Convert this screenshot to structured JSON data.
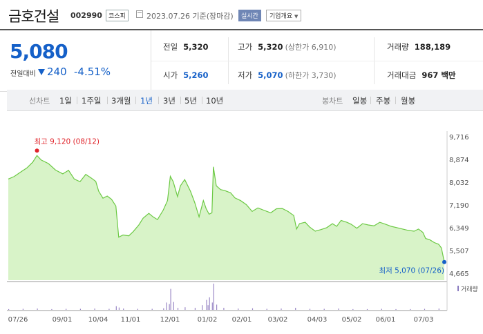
{
  "header": {
    "name": "금호건설",
    "code": "002990",
    "market": "코스피",
    "date_text": "2023.07.26 기준(장마감)",
    "realtime_label": "실시간",
    "overview_label": "기업개요",
    "overview_caret": "▼"
  },
  "quote": {
    "price": "5,080",
    "change_label": "전일대비",
    "change": "240",
    "change_pct": "-4.51%",
    "prev_label": "전일",
    "prev": "5,320",
    "open_label": "시가",
    "open": "5,260",
    "high_label": "고가",
    "high": "5,320",
    "high_limit": "(상한가 6,910)",
    "low_label": "저가",
    "low": "5,070",
    "low_limit": "(하한가 3,730)",
    "volume_label": "거래량",
    "volume": "188,189",
    "amount_label": "거래대금",
    "amount": "967 백만",
    "colors": {
      "down": "#1560c8",
      "up": "#e0242b"
    }
  },
  "tabs": {
    "line_label": "선차트",
    "line_items": [
      "1일",
      "1주일",
      "3개월",
      "1년",
      "3년",
      "5년",
      "10년"
    ],
    "active": "1년",
    "candle_label": "봉차트",
    "candle_items": [
      "일봉",
      "주봉",
      "월봉"
    ]
  },
  "chart_data": {
    "type": "area",
    "y_ticks": [
      "9,716",
      "8,874",
      "8,032",
      "7,190",
      "6,349",
      "5,507",
      "4,665"
    ],
    "ylim": [
      4665,
      9716
    ],
    "x_labels": [
      "07/26",
      "09/01",
      "10/04",
      "11/01",
      "12/01",
      "01/02",
      "02/01",
      "03/02",
      "04/03",
      "05/02",
      "06/01",
      "07/03"
    ],
    "max_label": "최고 9,120 (08/12)",
    "min_label": "최저 5,070 (07/26)",
    "volume_label": "거래량",
    "colors": {
      "line": "#6cc944",
      "fill": "#d8f3c8",
      "max": "#e0242b",
      "min": "#1560c8",
      "volume": "#9b88c6"
    },
    "price": [
      [
        0,
        8150
      ],
      [
        4,
        8240
      ],
      [
        9,
        8420
      ],
      [
        13,
        8560
      ],
      [
        17,
        8770
      ],
      [
        20,
        9020
      ],
      [
        23,
        8850
      ],
      [
        28,
        8720
      ],
      [
        33,
        8480
      ],
      [
        38,
        8340
      ],
      [
        42,
        8470
      ],
      [
        46,
        8150
      ],
      [
        50,
        8050
      ],
      [
        54,
        8320
      ],
      [
        58,
        8180
      ],
      [
        61,
        8060
      ],
      [
        63,
        7700
      ],
      [
        66,
        7440
      ],
      [
        69,
        7520
      ],
      [
        72,
        7400
      ],
      [
        75,
        7150
      ],
      [
        77,
        6000
      ],
      [
        80,
        6080
      ],
      [
        84,
        6050
      ],
      [
        87,
        6200
      ],
      [
        91,
        6450
      ],
      [
        94,
        6700
      ],
      [
        98,
        6880
      ],
      [
        101,
        6750
      ],
      [
        104,
        6650
      ],
      [
        108,
        7000
      ],
      [
        111,
        7350
      ],
      [
        113,
        8250
      ],
      [
        115,
        8050
      ],
      [
        118,
        7500
      ],
      [
        120,
        7900
      ],
      [
        123,
        8130
      ],
      [
        127,
        7700
      ],
      [
        130,
        7280
      ],
      [
        133,
        6750
      ],
      [
        136,
        7350
      ],
      [
        138,
        7050
      ],
      [
        140,
        6850
      ],
      [
        142,
        6900
      ],
      [
        143,
        8600
      ],
      [
        145,
        7900
      ],
      [
        148,
        7760
      ],
      [
        151,
        7720
      ],
      [
        155,
        7640
      ],
      [
        158,
        7450
      ],
      [
        162,
        7350
      ],
      [
        166,
        7200
      ],
      [
        170,
        6950
      ],
      [
        174,
        7080
      ],
      [
        178,
        7000
      ],
      [
        183,
        6900
      ],
      [
        187,
        7050
      ],
      [
        191,
        7060
      ],
      [
        195,
        6950
      ],
      [
        199,
        6800
      ],
      [
        201,
        6300
      ],
      [
        203,
        6500
      ],
      [
        207,
        6550
      ],
      [
        210,
        6380
      ],
      [
        214,
        6220
      ],
      [
        218,
        6280
      ],
      [
        222,
        6350
      ],
      [
        226,
        6500
      ],
      [
        229,
        6400
      ],
      [
        232,
        6620
      ],
      [
        236,
        6550
      ],
      [
        239,
        6480
      ],
      [
        243,
        6330
      ],
      [
        247,
        6500
      ],
      [
        251,
        6450
      ],
      [
        255,
        6420
      ],
      [
        259,
        6550
      ],
      [
        263,
        6480
      ],
      [
        267,
        6400
      ],
      [
        271,
        6350
      ],
      [
        275,
        6300
      ],
      [
        279,
        6250
      ],
      [
        283,
        6220
      ],
      [
        286,
        6300
      ],
      [
        289,
        6180
      ],
      [
        291,
        5950
      ],
      [
        294,
        5900
      ],
      [
        297,
        5800
      ],
      [
        300,
        5740
      ],
      [
        302,
        5600
      ],
      [
        304,
        5080
      ]
    ],
    "volume": [
      [
        0,
        3
      ],
      [
        10,
        4
      ],
      [
        20,
        5
      ],
      [
        30,
        3
      ],
      [
        40,
        4
      ],
      [
        50,
        4
      ],
      [
        60,
        5
      ],
      [
        70,
        4
      ],
      [
        75,
        14
      ],
      [
        77,
        9
      ],
      [
        80,
        5
      ],
      [
        90,
        4
      ],
      [
        100,
        4
      ],
      [
        108,
        6
      ],
      [
        110,
        28
      ],
      [
        112,
        22
      ],
      [
        113,
        80
      ],
      [
        115,
        30
      ],
      [
        118,
        8
      ],
      [
        123,
        10
      ],
      [
        130,
        8
      ],
      [
        135,
        18
      ],
      [
        138,
        38
      ],
      [
        139,
        18
      ],
      [
        140,
        48
      ],
      [
        142,
        28
      ],
      [
        143,
        100
      ],
      [
        145,
        20
      ],
      [
        150,
        8
      ],
      [
        160,
        5
      ],
      [
        170,
        6
      ],
      [
        180,
        4
      ],
      [
        190,
        5
      ],
      [
        200,
        8
      ],
      [
        210,
        4
      ],
      [
        220,
        4
      ],
      [
        230,
        5
      ],
      [
        240,
        3
      ],
      [
        250,
        3
      ],
      [
        260,
        4
      ],
      [
        270,
        3
      ],
      [
        280,
        3
      ],
      [
        290,
        4
      ],
      [
        300,
        5
      ]
    ]
  }
}
